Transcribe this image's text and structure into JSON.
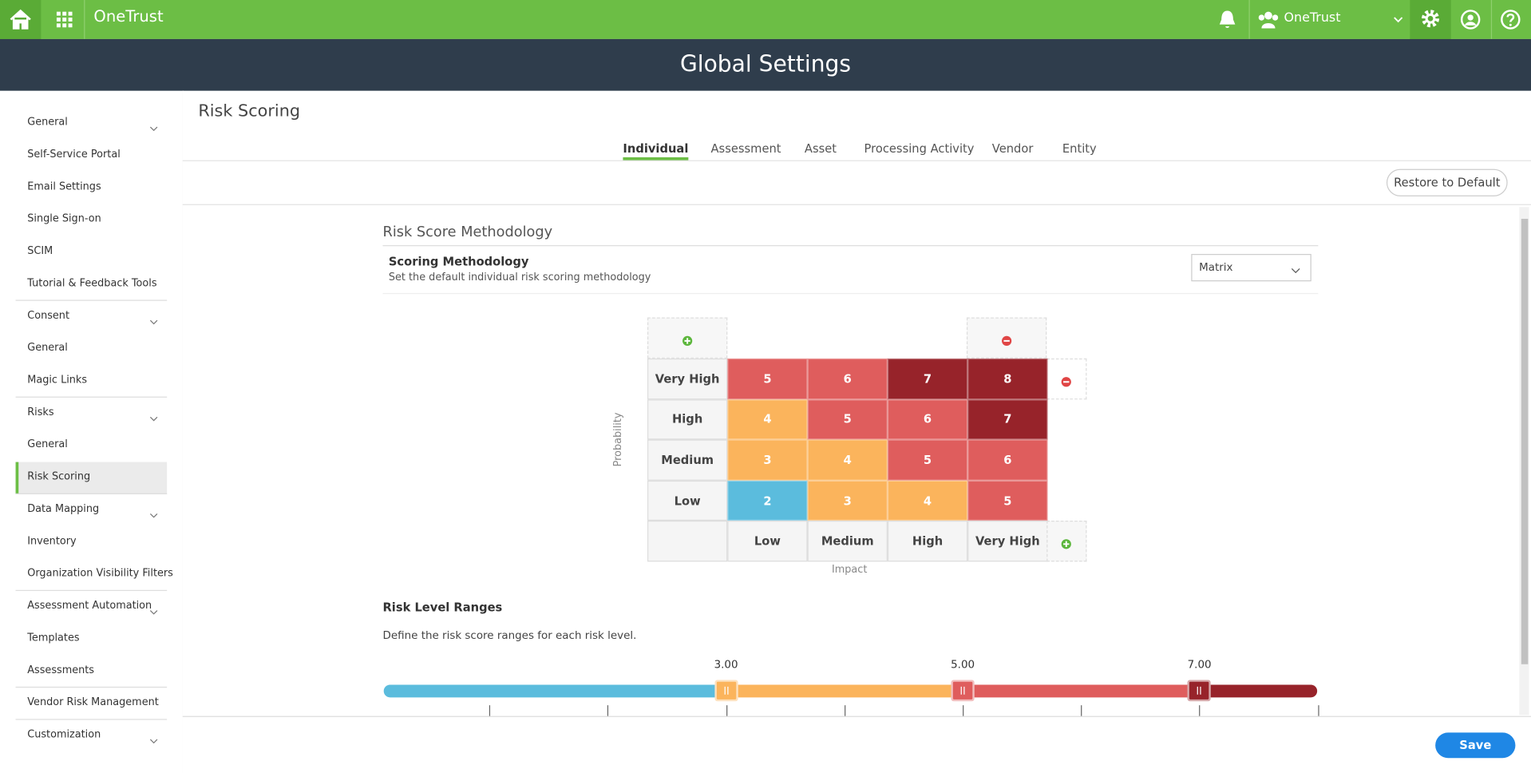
{
  "topbar": {
    "brand": "OneTrust",
    "org": "OneTrust"
  },
  "header": {
    "title": "Global Settings"
  },
  "sidebar": [
    {
      "label": "General",
      "expandable": true
    },
    {
      "label": "Self-Service Portal"
    },
    {
      "label": "Email Settings"
    },
    {
      "label": "Single Sign-on"
    },
    {
      "label": "SCIM"
    },
    {
      "label": "Tutorial & Feedback Tools"
    },
    {
      "label": "Consent",
      "expandable": true,
      "divider": true
    },
    {
      "label": "General"
    },
    {
      "label": "Magic Links"
    },
    {
      "label": "Risks",
      "expandable": true,
      "divider": true
    },
    {
      "label": "General"
    },
    {
      "label": "Risk Scoring",
      "active": true
    },
    {
      "label": "Data Mapping",
      "expandable": true,
      "divider": true
    },
    {
      "label": "Inventory"
    },
    {
      "label": "Organization Visibility Filters"
    },
    {
      "label": "Assessment Automation",
      "expandable": true,
      "divider": true
    },
    {
      "label": "Templates"
    },
    {
      "label": "Assessments"
    },
    {
      "label": "Vendor Risk Management",
      "divider": true
    },
    {
      "label": "Customization",
      "expandable": true,
      "divider": true
    }
  ],
  "page": {
    "title": "Risk Scoring",
    "tabs": [
      "Individual",
      "Assessment",
      "Asset",
      "Processing Activity",
      "Vendor",
      "Entity"
    ],
    "active_tab": 0,
    "restore": "Restore to Default",
    "save": "Save"
  },
  "methodology": {
    "section": "Risk Score Methodology",
    "label": "Scoring Methodology",
    "description": "Set the default individual risk scoring methodology",
    "selected": "Matrix"
  },
  "matrix": {
    "rows": [
      "Very High",
      "High",
      "Medium",
      "Low"
    ],
    "columns": [
      "Low",
      "Medium",
      "High",
      "Very High"
    ],
    "cells": [
      [
        5,
        6,
        7,
        8
      ],
      [
        4,
        5,
        6,
        7
      ],
      [
        3,
        4,
        5,
        6
      ],
      [
        2,
        3,
        4,
        5
      ]
    ],
    "x_label": "Impact",
    "y_label": "Probability"
  },
  "ranges": {
    "title": "Risk Level Ranges",
    "description": "Define the risk score ranges for each risk level.",
    "thresholds": [
      {
        "value": 3,
        "label": "3.00"
      },
      {
        "value": 5,
        "label": "5.00"
      },
      {
        "value": 7,
        "label": "7.00"
      }
    ],
    "colors": [
      "#5bbcdd",
      "#fbb45c",
      "#df5d5d",
      "#97232a"
    ]
  }
}
